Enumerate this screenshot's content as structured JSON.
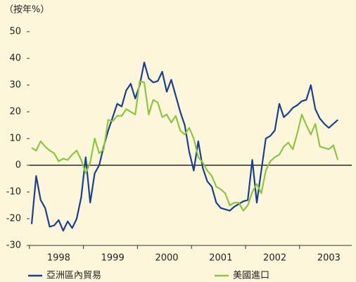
{
  "chart_data": {
    "type": "line",
    "y_label": "（按年%）",
    "categories": [
      null,
      null,
      null,
      null,
      null,
      null,
      "1998",
      null,
      null,
      null,
      null,
      null,
      null,
      null,
      null,
      null,
      null,
      null,
      "1999",
      null,
      null,
      null,
      null,
      null,
      null,
      null,
      null,
      null,
      null,
      null,
      "2000",
      null,
      null,
      null,
      null,
      null,
      null,
      null,
      null,
      null,
      null,
      null,
      "2001",
      null,
      null,
      null,
      null,
      null,
      null,
      null,
      null,
      null,
      null,
      null,
      "2002",
      null,
      null,
      null,
      null,
      null,
      null,
      null,
      null,
      null,
      null,
      null,
      "2003",
      null,
      null
    ],
    "series": [
      {
        "name": "亞洲區內貿易",
        "color": "#1b3f8f",
        "values": [
          -22,
          -4,
          -13,
          -16,
          -23,
          -22.5,
          -20.5,
          -24.5,
          -21,
          -23.5,
          -20,
          -12,
          3,
          -14,
          -3,
          0,
          7,
          13,
          18,
          23,
          22,
          28,
          30.5,
          25,
          30,
          38.5,
          32.5,
          31,
          31.5,
          35,
          27.5,
          32,
          26,
          20,
          15,
          5,
          -2,
          9,
          -1,
          -6,
          -8,
          -14,
          -16,
          -16.5,
          -17,
          -15.5,
          -14.5,
          -13.5,
          -13,
          2,
          -14,
          -2,
          10,
          11,
          13,
          23,
          18,
          19.5,
          21.5,
          22.5,
          24,
          24.5,
          30,
          21,
          17.5,
          15.5,
          14,
          15.5,
          17
        ]
      },
      {
        "name": "美國進口",
        "color": "#8cc63f",
        "values": [
          6.5,
          5.5,
          9,
          7,
          5.5,
          4.5,
          1.5,
          2.5,
          2,
          4,
          5.5,
          2,
          -3,
          1,
          10,
          4.5,
          6,
          17,
          16.5,
          18.5,
          18.5,
          21,
          20,
          19,
          31.5,
          31,
          19,
          24.5,
          23.5,
          18,
          19,
          16,
          18.5,
          13,
          11.5,
          14,
          10,
          3,
          1,
          -2,
          -4,
          -8,
          -9,
          -10.5,
          -15,
          -14,
          -14,
          -17,
          -15,
          -10,
          -7,
          -10.5,
          -2,
          1.5,
          3,
          4,
          7,
          8.5,
          6,
          12,
          19,
          15,
          11.5,
          15.5,
          7,
          6.5,
          6,
          7.5,
          2
        ]
      }
    ],
    "ylim": [
      -30,
      50
    ],
    "yticks": [
      -30,
      -20,
      -10,
      0,
      10,
      20,
      30,
      40,
      50
    ]
  }
}
